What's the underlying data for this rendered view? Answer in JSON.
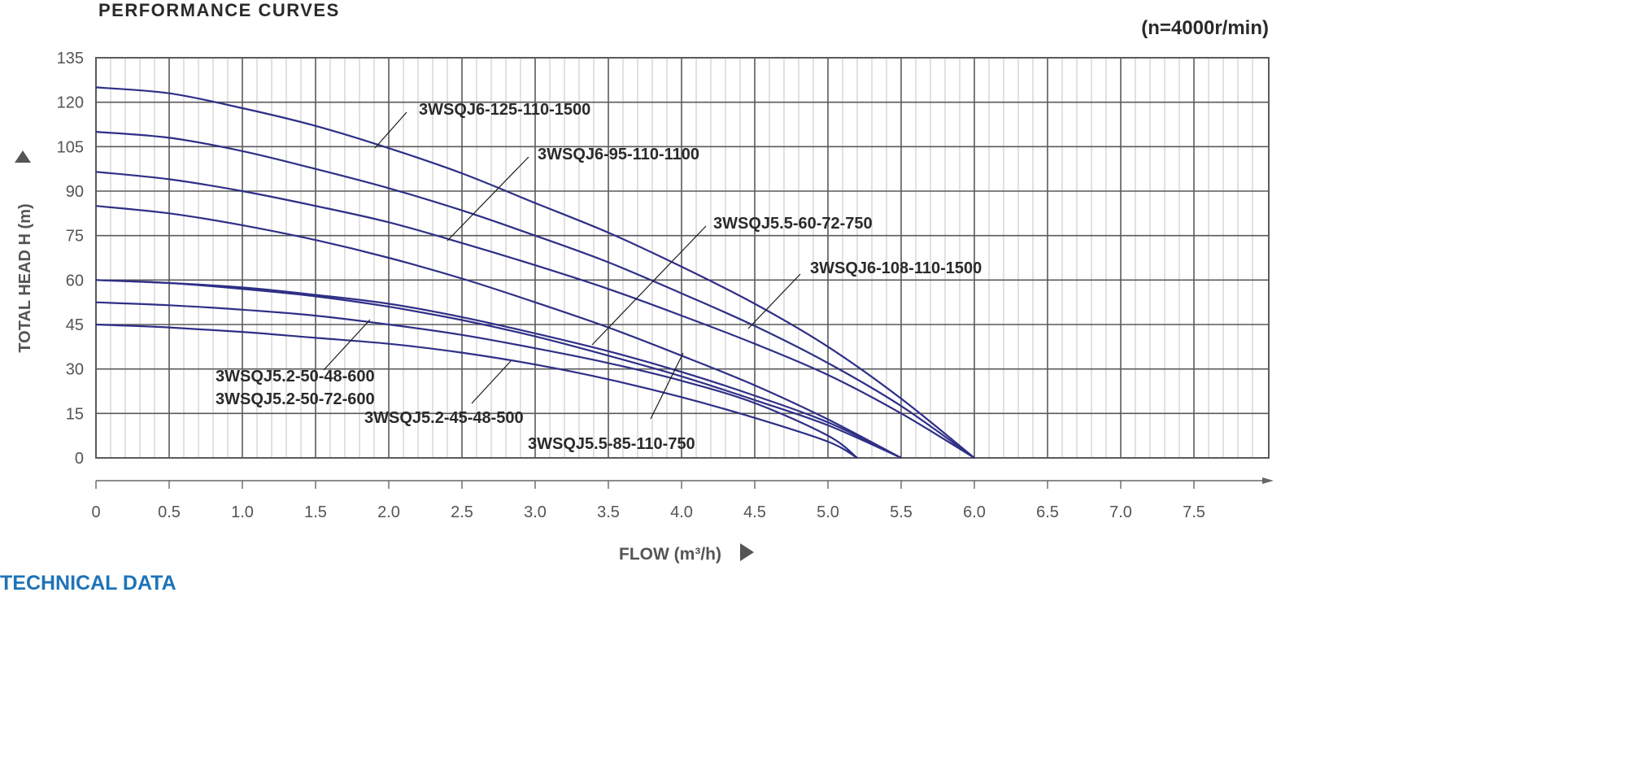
{
  "header": {
    "title": "PERFORMANCE CURVES",
    "speed": "(n=4000r/min)"
  },
  "footer": {
    "section_title": "TECHNICAL DATA"
  },
  "colors": {
    "curve": "#2e2f86",
    "grid_major": "#5a5a5a",
    "grid_minor": "#b4b4b4",
    "axis_text": "#555555",
    "label_text": "#2a2a2a",
    "section_title": "#1f73b7"
  },
  "chart_data": {
    "type": "line",
    "xlabel": "FLOW (m³/h)",
    "ylabel": "TOTAL HEAD H (m)",
    "xlim": [
      0,
      8
    ],
    "ylim": [
      0,
      135
    ],
    "x_ticks": [
      "0",
      "0.5",
      "1.0",
      "1.5",
      "2.0",
      "2.5",
      "3.0",
      "3.5",
      "4.0",
      "4.5",
      "5.0",
      "5.5",
      "6.0",
      "6.5",
      "7.0",
      "7.5"
    ],
    "y_ticks": [
      "0",
      "15",
      "30",
      "45",
      "60",
      "75",
      "90",
      "105",
      "120",
      "135"
    ],
    "grid": true,
    "series": [
      {
        "name": "3WSQJ6-125-110-1500",
        "x": [
          0,
          0.5,
          1.0,
          1.5,
          2.0,
          2.5,
          3.0,
          3.5,
          4.0,
          4.5,
          5.0,
          5.5,
          6.0
        ],
        "y": [
          125,
          123,
          118,
          112,
          104.5,
          96,
          86,
          76,
          64.5,
          52,
          37.5,
          20,
          0
        ]
      },
      {
        "name": "3WSQJ6-108-110-1500",
        "x": [
          0,
          0.5,
          1.0,
          1.5,
          2.0,
          2.5,
          3.0,
          3.5,
          4.0,
          4.5,
          5.0,
          5.5,
          6.0
        ],
        "y": [
          110,
          108,
          103.5,
          97.5,
          91,
          83.5,
          75,
          66,
          55.5,
          44.5,
          32,
          17.5,
          0
        ]
      },
      {
        "name": "3WSQJ6-95-110-1100",
        "x": [
          0,
          0.5,
          1.0,
          1.5,
          2.0,
          2.5,
          3.0,
          3.5,
          4.0,
          4.5,
          5.0,
          5.5,
          6.0
        ],
        "y": [
          96.5,
          94,
          90,
          85,
          79.5,
          72.5,
          65,
          57,
          48,
          38.5,
          28,
          15,
          0
        ]
      },
      {
        "name": "3WSQJ5.5-85-110-750",
        "x": [
          0,
          0.5,
          1.0,
          1.5,
          2.0,
          2.5,
          3.0,
          3.5,
          4.0,
          4.5,
          5.0,
          5.5
        ],
        "y": [
          85,
          82.5,
          78.5,
          73.5,
          67.5,
          60.5,
          52.5,
          44,
          34.5,
          24.5,
          13,
          0
        ]
      },
      {
        "name": "3WSQJ5.5-60-72-750",
        "x": [
          0,
          0.5,
          1.0,
          1.5,
          2.0,
          2.5,
          3.0,
          3.5,
          4.0,
          4.5,
          5.0,
          5.5
        ],
        "y": [
          60,
          59,
          57.5,
          55,
          52,
          47.5,
          42,
          36,
          29,
          21,
          12,
          0
        ]
      },
      {
        "name": "3WSQJ5.2-50-72-600",
        "x": [
          0,
          0.5,
          1.0,
          1.5,
          2.0,
          2.5,
          3.0,
          3.5,
          4.0,
          4.5,
          5.0,
          5.2
        ],
        "y": [
          52.5,
          51.5,
          50,
          48,
          45,
          41.5,
          37,
          32,
          26,
          18.5,
          7.5,
          0
        ]
      },
      {
        "name": "3WSQJ5.2-50-48-600",
        "x": [
          0,
          0.5,
          1.0,
          1.5,
          2.0,
          2.5,
          3.0,
          3.5,
          4.0,
          4.5,
          5.0,
          5.5
        ],
        "y": [
          60,
          59,
          57,
          54.5,
          51,
          46.5,
          41,
          34.5,
          27.5,
          19.5,
          11,
          0
        ]
      },
      {
        "name": "3WSQJ5.2-45-48-500",
        "x": [
          0,
          0.5,
          1.0,
          1.5,
          2.0,
          2.5,
          3.0,
          3.5,
          4.0,
          4.5,
          5.0,
          5.2
        ],
        "y": [
          45,
          44,
          42.5,
          40.5,
          38.5,
          35.5,
          31.5,
          26.5,
          20.5,
          13.5,
          5.5,
          0
        ]
      }
    ]
  }
}
